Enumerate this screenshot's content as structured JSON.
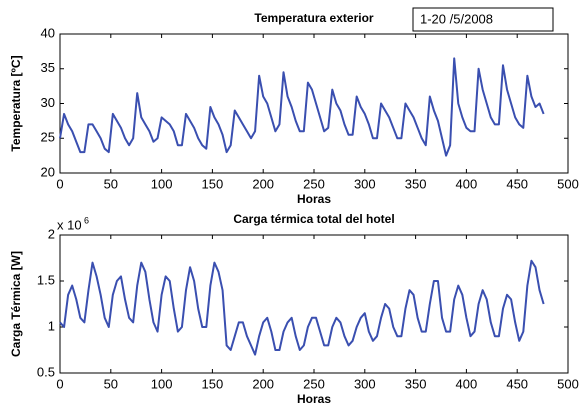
{
  "chart_data": [
    {
      "type": "line",
      "title": "Temperatura exterior",
      "annotation": "1-20 /5/2008",
      "xlabel": "Horas",
      "ylabel": "Temperatura [ºC]",
      "xlim": [
        0,
        500
      ],
      "xticks": [
        0,
        50,
        100,
        150,
        200,
        250,
        300,
        350,
        400,
        450,
        500
      ],
      "ylim": [
        20,
        40
      ],
      "yticks": [
        20,
        25,
        30,
        35,
        40
      ],
      "series": [
        {
          "color": "#3a4fb0",
          "x": [
            0,
            4,
            8,
            12,
            16,
            20,
            24,
            28,
            32,
            36,
            40,
            44,
            48,
            52,
            56,
            60,
            64,
            68,
            72,
            76,
            80,
            84,
            88,
            92,
            96,
            100,
            104,
            108,
            112,
            116,
            120,
            124,
            128,
            132,
            136,
            140,
            144,
            148,
            152,
            156,
            160,
            164,
            168,
            172,
            176,
            180,
            184,
            188,
            192,
            196,
            200,
            204,
            208,
            212,
            216,
            220,
            224,
            228,
            232,
            236,
            240,
            244,
            248,
            252,
            256,
            260,
            264,
            268,
            272,
            276,
            280,
            284,
            288,
            292,
            296,
            300,
            304,
            308,
            312,
            316,
            320,
            324,
            328,
            332,
            336,
            340,
            344,
            348,
            352,
            356,
            360,
            364,
            368,
            372,
            376,
            380,
            384,
            388,
            392,
            396,
            400,
            404,
            408,
            412,
            416,
            420,
            424,
            428,
            432,
            436,
            440,
            444,
            448,
            452,
            456,
            460,
            464,
            468,
            472,
            476
          ],
          "values": [
            25,
            28.5,
            27,
            26,
            24.5,
            23,
            23,
            27,
            27,
            26,
            25,
            23.5,
            23,
            28.5,
            27.5,
            26.5,
            25,
            24,
            25,
            31.5,
            28,
            27,
            26,
            24.5,
            25,
            28,
            27.5,
            27,
            26,
            24,
            24,
            28.5,
            27.5,
            26.5,
            25,
            24,
            23.5,
            29.5,
            28,
            27,
            25.5,
            23,
            24,
            29,
            28,
            27,
            26,
            25,
            26,
            34,
            31,
            30,
            28,
            26,
            27,
            34.5,
            31,
            29.5,
            27.5,
            26,
            26,
            33,
            32,
            30,
            28,
            26,
            26.5,
            32,
            30,
            29,
            27,
            25.5,
            25.5,
            31,
            29.5,
            28.5,
            27,
            25,
            25,
            30,
            29,
            28,
            26.5,
            25,
            25,
            30,
            29,
            28,
            26.5,
            25,
            24,
            31,
            29,
            27.5,
            25,
            22.5,
            24,
            36.5,
            30,
            28,
            26.5,
            26,
            26,
            35,
            32,
            30,
            28,
            27,
            27,
            35.5,
            32,
            30,
            28,
            27,
            26.5,
            34,
            31,
            29.5,
            30,
            28.5
          ]
        }
      ]
    },
    {
      "type": "line",
      "title": "Carga térmica total del hotel",
      "y_multiplier": {
        "base": "x 10",
        "exponent": "6"
      },
      "xlabel": "Horas",
      "ylabel": "Carga Térmica [W]",
      "xlim": [
        0,
        500
      ],
      "xticks": [
        0,
        50,
        100,
        150,
        200,
        250,
        300,
        350,
        400,
        450,
        500
      ],
      "ylim": [
        0.5,
        2
      ],
      "yticks": [
        0.5,
        1,
        1.5,
        2
      ],
      "series": [
        {
          "color": "#3a4fb0",
          "x": [
            0,
            4,
            8,
            12,
            16,
            20,
            24,
            28,
            32,
            36,
            40,
            44,
            48,
            52,
            56,
            60,
            64,
            68,
            72,
            76,
            80,
            84,
            88,
            92,
            96,
            100,
            104,
            108,
            112,
            116,
            120,
            124,
            128,
            132,
            136,
            140,
            144,
            148,
            152,
            156,
            160,
            164,
            168,
            172,
            176,
            180,
            184,
            188,
            192,
            196,
            200,
            204,
            208,
            212,
            216,
            220,
            224,
            228,
            232,
            236,
            240,
            244,
            248,
            252,
            256,
            260,
            264,
            268,
            272,
            276,
            280,
            284,
            288,
            292,
            296,
            300,
            304,
            308,
            312,
            316,
            320,
            324,
            328,
            332,
            336,
            340,
            344,
            348,
            352,
            356,
            360,
            364,
            368,
            372,
            376,
            380,
            384,
            388,
            392,
            396,
            400,
            404,
            408,
            412,
            416,
            420,
            424,
            428,
            432,
            436,
            440,
            444,
            448,
            452,
            456,
            460,
            464,
            468,
            472,
            476
          ],
          "values": [
            1.05,
            1.0,
            1.35,
            1.45,
            1.3,
            1.1,
            1.05,
            1.4,
            1.7,
            1.55,
            1.35,
            1.1,
            1.0,
            1.35,
            1.5,
            1.55,
            1.3,
            1.1,
            1.05,
            1.45,
            1.7,
            1.6,
            1.3,
            1.05,
            0.95,
            1.35,
            1.55,
            1.5,
            1.2,
            0.95,
            1.0,
            1.4,
            1.65,
            1.5,
            1.2,
            1.0,
            1.0,
            1.45,
            1.7,
            1.6,
            1.4,
            0.8,
            0.75,
            0.9,
            1.05,
            1.05,
            0.9,
            0.8,
            0.7,
            0.9,
            1.05,
            1.1,
            0.95,
            0.75,
            0.75,
            0.95,
            1.05,
            1.1,
            0.9,
            0.75,
            0.8,
            1.0,
            1.1,
            1.1,
            0.95,
            0.8,
            0.8,
            1.0,
            1.1,
            1.05,
            0.9,
            0.8,
            0.85,
            1.0,
            1.1,
            1.15,
            0.95,
            0.85,
            0.9,
            1.1,
            1.25,
            1.2,
            1.0,
            0.9,
            0.9,
            1.2,
            1.4,
            1.35,
            1.1,
            0.95,
            0.95,
            1.25,
            1.5,
            1.5,
            1.1,
            0.95,
            0.95,
            1.3,
            1.45,
            1.35,
            1.1,
            0.9,
            0.95,
            1.25,
            1.4,
            1.3,
            1.05,
            0.9,
            0.9,
            1.2,
            1.35,
            1.3,
            1.05,
            0.85,
            0.95,
            1.45,
            1.72,
            1.65,
            1.4,
            1.25
          ]
        }
      ]
    }
  ]
}
